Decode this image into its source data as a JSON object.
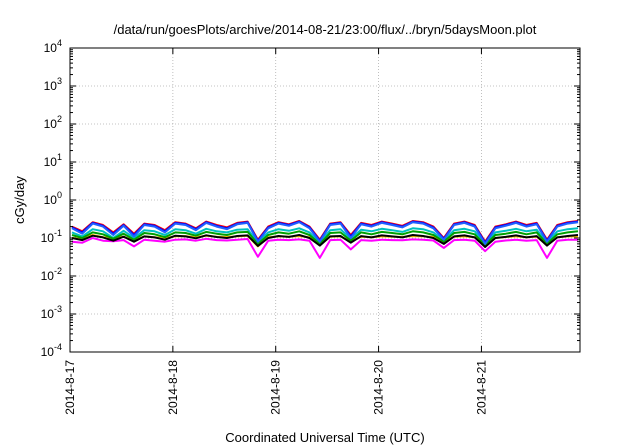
{
  "chart_data": {
    "type": "line",
    "title": "/data/run/goesPlots/archive/2014-08-21/23:00/flux/../bryn/5daysMoon.plot",
    "xlabel": "Coordinated Universal Time (UTC)",
    "ylabel": "cGy/day",
    "yscale": "log",
    "ylim": [
      0.0001,
      10000
    ],
    "xlim": [
      "2014-08-17",
      "2014-08-21 23:00"
    ],
    "grid": true,
    "x_ticks": [
      "2014-8-17",
      "2014-8-18",
      "2014-8-19",
      "2014-8-20",
      "2014-8-21"
    ],
    "y_ticks": [
      {
        "base": "10",
        "exp": "-4"
      },
      {
        "base": "10",
        "exp": "-3"
      },
      {
        "base": "10",
        "exp": "-2"
      },
      {
        "base": "10",
        "exp": "-1"
      },
      {
        "base": "10",
        "exp": "0"
      },
      {
        "base": "10",
        "exp": "1"
      },
      {
        "base": "10",
        "exp": "2"
      },
      {
        "base": "10",
        "exp": "3"
      },
      {
        "base": "10",
        "exp": "4"
      }
    ],
    "series": [
      {
        "color": "#ff00ff",
        "values": [
          0.08,
          0.075,
          0.1,
          0.085,
          0.082,
          0.088,
          0.06,
          0.09,
          0.085,
          0.08,
          0.09,
          0.092,
          0.085,
          0.095,
          0.088,
          0.086,
          0.09,
          0.094,
          0.032,
          0.085,
          0.09,
          0.088,
          0.092,
          0.085,
          0.03,
          0.088,
          0.09,
          0.05,
          0.088,
          0.085,
          0.09,
          0.088,
          0.087,
          0.092,
          0.09,
          0.086,
          0.055,
          0.088,
          0.09,
          0.085,
          0.045,
          0.08,
          0.086,
          0.09,
          0.085,
          0.088,
          0.03,
          0.085,
          0.09,
          0.09
        ]
      },
      {
        "color": "#ffc000",
        "values": [
          0.1,
          0.095,
          0.12,
          0.105,
          0.1,
          0.108,
          0.085,
          0.11,
          0.105,
          0.1,
          0.11,
          0.112,
          0.105,
          0.115,
          0.108,
          0.106,
          0.11,
          0.114,
          0.06,
          0.105,
          0.11,
          0.108,
          0.112,
          0.105,
          0.065,
          0.108,
          0.11,
          0.08,
          0.108,
          0.105,
          0.11,
          0.108,
          0.107,
          0.112,
          0.11,
          0.106,
          0.08,
          0.108,
          0.11,
          0.105,
          0.07,
          0.1,
          0.106,
          0.11,
          0.105,
          0.108,
          0.065,
          0.105,
          0.11,
          0.11
        ]
      },
      {
        "color": "#ff0000",
        "values": [
          0.2,
          0.15,
          0.26,
          0.22,
          0.14,
          0.23,
          0.13,
          0.24,
          0.22,
          0.16,
          0.26,
          0.24,
          0.18,
          0.27,
          0.22,
          0.19,
          0.25,
          0.27,
          0.09,
          0.2,
          0.26,
          0.23,
          0.28,
          0.2,
          0.09,
          0.24,
          0.26,
          0.12,
          0.25,
          0.22,
          0.27,
          0.24,
          0.21,
          0.28,
          0.26,
          0.2,
          0.1,
          0.24,
          0.27,
          0.22,
          0.08,
          0.2,
          0.23,
          0.27,
          0.22,
          0.25,
          0.09,
          0.22,
          0.26,
          0.28
        ]
      },
      {
        "color": "#0000ff",
        "values": [
          0.19,
          0.14,
          0.25,
          0.21,
          0.13,
          0.22,
          0.12,
          0.23,
          0.21,
          0.15,
          0.25,
          0.23,
          0.17,
          0.26,
          0.21,
          0.18,
          0.24,
          0.26,
          0.085,
          0.19,
          0.25,
          0.22,
          0.27,
          0.19,
          0.085,
          0.23,
          0.25,
          0.11,
          0.24,
          0.21,
          0.26,
          0.23,
          0.2,
          0.27,
          0.25,
          0.19,
          0.095,
          0.23,
          0.26,
          0.21,
          0.075,
          0.19,
          0.22,
          0.26,
          0.21,
          0.24,
          0.085,
          0.21,
          0.25,
          0.27
        ]
      },
      {
        "color": "#00c0c0",
        "values": [
          0.14,
          0.11,
          0.17,
          0.15,
          0.1,
          0.155,
          0.1,
          0.16,
          0.15,
          0.12,
          0.17,
          0.16,
          0.13,
          0.175,
          0.15,
          0.14,
          0.165,
          0.17,
          0.075,
          0.14,
          0.17,
          0.155,
          0.18,
          0.14,
          0.075,
          0.16,
          0.17,
          0.095,
          0.165,
          0.15,
          0.175,
          0.16,
          0.145,
          0.18,
          0.17,
          0.14,
          0.085,
          0.16,
          0.175,
          0.15,
          0.07,
          0.14,
          0.155,
          0.175,
          0.15,
          0.165,
          0.075,
          0.15,
          0.17,
          0.18
        ]
      },
      {
        "color": "#00a000",
        "values": [
          0.12,
          0.1,
          0.14,
          0.125,
          0.095,
          0.13,
          0.09,
          0.135,
          0.125,
          0.105,
          0.14,
          0.135,
          0.115,
          0.145,
          0.13,
          0.12,
          0.14,
          0.145,
          0.07,
          0.12,
          0.14,
          0.13,
          0.15,
          0.12,
          0.07,
          0.135,
          0.14,
          0.085,
          0.14,
          0.125,
          0.145,
          0.135,
          0.125,
          0.15,
          0.14,
          0.12,
          0.08,
          0.135,
          0.145,
          0.125,
          0.065,
          0.12,
          0.13,
          0.145,
          0.125,
          0.14,
          0.07,
          0.125,
          0.14,
          0.15
        ]
      },
      {
        "color": "#000000",
        "values": [
          0.1,
          0.088,
          0.115,
          0.104,
          0.085,
          0.108,
          0.08,
          0.11,
          0.104,
          0.09,
          0.115,
          0.11,
          0.098,
          0.118,
          0.106,
          0.1,
          0.113,
          0.117,
          0.062,
          0.1,
          0.113,
          0.107,
          0.12,
          0.1,
          0.063,
          0.11,
          0.113,
          0.075,
          0.112,
          0.104,
          0.117,
          0.11,
          0.104,
          0.12,
          0.113,
          0.1,
          0.07,
          0.11,
          0.117,
          0.104,
          0.058,
          0.1,
          0.107,
          0.117,
          0.104,
          0.112,
          0.063,
          0.104,
          0.113,
          0.12
        ]
      },
      {
        "color": "#2060ff",
        "values": [
          0.18,
          0.13,
          0.24,
          0.2,
          0.12,
          0.21,
          0.11,
          0.22,
          0.2,
          0.14,
          0.24,
          0.22,
          0.16,
          0.25,
          0.2,
          0.17,
          0.23,
          0.25,
          0.08,
          0.18,
          0.24,
          0.21,
          0.26,
          0.18,
          0.08,
          0.22,
          0.24,
          0.1,
          0.23,
          0.2,
          0.25,
          0.22,
          0.19,
          0.26,
          0.24,
          0.18,
          0.09,
          0.22,
          0.25,
          0.2,
          0.07,
          0.18,
          0.21,
          0.25,
          0.2,
          0.23,
          0.08,
          0.2,
          0.24,
          0.26
        ]
      }
    ]
  }
}
